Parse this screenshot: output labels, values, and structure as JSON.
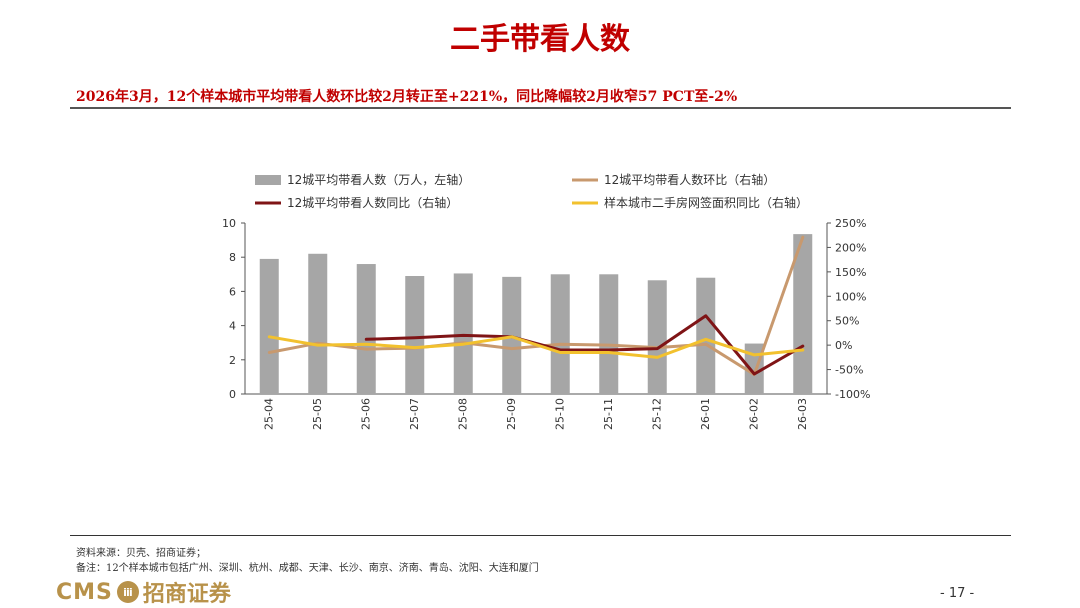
{
  "page": {
    "title": "二手带看人数",
    "subtitle": "2026年3月，12个样本城市平均带看人数环比较2月转正至+221%，同比降幅较2月收窄57 PCT至-2%",
    "source": "资料来源：贝壳、招商证券；",
    "note": "备注：12个样本城市包括广州、深圳、杭州、成都、天津、长沙、南京、济南、青岛、沈阳、大连和厦门",
    "logo_text": "CMS",
    "logo_badge": "ⅲ",
    "logo_cn": "招商证券",
    "page_number": "- 17 -"
  },
  "chart_data": {
    "type": "bar",
    "categories": [
      "25-04",
      "25-05",
      "25-06",
      "25-07",
      "25-08",
      "25-09",
      "25-10",
      "25-11",
      "25-12",
      "26-01",
      "26-02",
      "26-03"
    ],
    "left_axis": {
      "min": 0,
      "max": 10,
      "ticks": [
        "0",
        "2",
        "4",
        "6",
        "8",
        "10"
      ],
      "tick_values": [
        0,
        2,
        4,
        6,
        8,
        10
      ]
    },
    "right_axis": {
      "min": -100,
      "max": 250,
      "ticks": [
        "-100%",
        "-50%",
        "0%",
        "50%",
        "100%",
        "150%",
        "200%",
        "250%"
      ],
      "tick_values": [
        -100,
        -50,
        0,
        50,
        100,
        150,
        200,
        250
      ]
    },
    "series": [
      {
        "name": "12城平均带看人数（万人，左轴）",
        "kind": "bar",
        "axis": "left",
        "color": "#a6a6a6",
        "values": [
          7.9,
          8.2,
          7.6,
          6.9,
          7.05,
          6.85,
          7.0,
          7.0,
          6.65,
          6.8,
          2.95,
          9.35
        ]
      },
      {
        "name": "12城平均带看人数环比（右轴）",
        "kind": "line",
        "axis": "right",
        "color": "#c8996e",
        "values": [
          -15,
          4,
          -8,
          -6,
          5,
          -7,
          2,
          0,
          -5,
          2,
          -60,
          221
        ]
      },
      {
        "name": "12城平均带看人数同比（右轴）",
        "kind": "line",
        "axis": "right",
        "color": "#7f1416",
        "values": [
          null,
          null,
          12,
          15,
          20,
          17,
          -10,
          -10,
          -7,
          60,
          -59,
          -2
        ]
      },
      {
        "name": "样本城市二手房网签面积同比（右轴）",
        "kind": "line",
        "axis": "right",
        "color": "#f2c12e",
        "values": [
          17,
          0,
          2,
          -5,
          2,
          17,
          -15,
          -15,
          -25,
          12,
          -20,
          -10
        ]
      }
    ],
    "legend": [
      {
        "label": "12城平均带看人数（万人，左轴）",
        "swatch": "bar",
        "color": "#a6a6a6"
      },
      {
        "label": "12城平均带看人数环比（右轴）",
        "swatch": "line",
        "color": "#c8996e"
      },
      {
        "label": "12城平均带看人数同比（右轴）",
        "swatch": "line",
        "color": "#7f1416"
      },
      {
        "label": "样本城市二手房网签面积同比（右轴）",
        "swatch": "line",
        "color": "#f2c12e"
      }
    ]
  }
}
